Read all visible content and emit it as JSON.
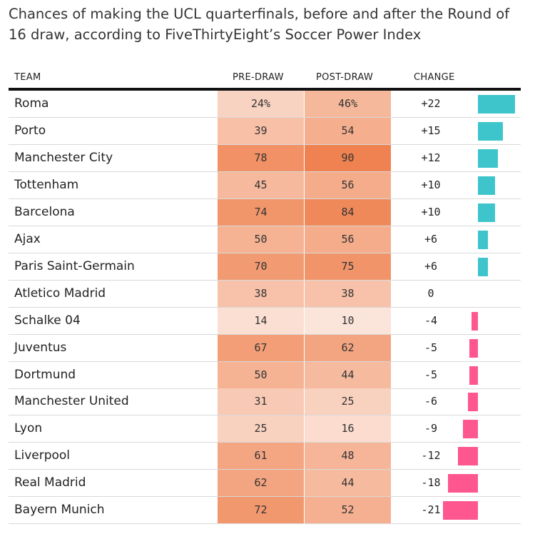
{
  "title": "Chances of making the UCL quarterfinals, before and after the Round of 16 draw, according to FiveThirtyEight’s Soccer Power Index",
  "colors": {
    "positive": "#3ec5cc",
    "negative": "#fe5790",
    "heat_low": "#fdf0ea",
    "heat_high": "#ef8250"
  },
  "chart_data": {
    "type": "table",
    "columns": [
      "TEAM",
      "PRE-DRAW",
      "POST-DRAW",
      "CHANGE"
    ],
    "rows": [
      {
        "team": "Roma",
        "pre": 24,
        "post": 46,
        "change": 22,
        "pre_label": "24%",
        "post_label": "46%",
        "change_label": "+22"
      },
      {
        "team": "Porto",
        "pre": 39,
        "post": 54,
        "change": 15,
        "pre_label": "39",
        "post_label": "54",
        "change_label": "+15"
      },
      {
        "team": "Manchester City",
        "pre": 78,
        "post": 90,
        "change": 12,
        "pre_label": "78",
        "post_label": "90",
        "change_label": "+12"
      },
      {
        "team": "Tottenham",
        "pre": 45,
        "post": 56,
        "change": 10,
        "pre_label": "45",
        "post_label": "56",
        "change_label": "+10"
      },
      {
        "team": "Barcelona",
        "pre": 74,
        "post": 84,
        "change": 10,
        "pre_label": "74",
        "post_label": "84",
        "change_label": "+10"
      },
      {
        "team": "Ajax",
        "pre": 50,
        "post": 56,
        "change": 6,
        "pre_label": "50",
        "post_label": "56",
        "change_label": "+6"
      },
      {
        "team": "Paris Saint-Germain",
        "pre": 70,
        "post": 75,
        "change": 6,
        "pre_label": "70",
        "post_label": "75",
        "change_label": "+6"
      },
      {
        "team": "Atletico Madrid",
        "pre": 38,
        "post": 38,
        "change": 0,
        "pre_label": "38",
        "post_label": "38",
        "change_label": "0"
      },
      {
        "team": "Schalke 04",
        "pre": 14,
        "post": 10,
        "change": -4,
        "pre_label": "14",
        "post_label": "10",
        "change_label": "-4"
      },
      {
        "team": "Juventus",
        "pre": 67,
        "post": 62,
        "change": -5,
        "pre_label": "67",
        "post_label": "62",
        "change_label": "-5"
      },
      {
        "team": "Dortmund",
        "pre": 50,
        "post": 44,
        "change": -5,
        "pre_label": "50",
        "post_label": "44",
        "change_label": "-5"
      },
      {
        "team": "Manchester United",
        "pre": 31,
        "post": 25,
        "change": -6,
        "pre_label": "31",
        "post_label": "25",
        "change_label": "-6"
      },
      {
        "team": "Lyon",
        "pre": 25,
        "post": 16,
        "change": -9,
        "pre_label": "25",
        "post_label": "16",
        "change_label": "-9"
      },
      {
        "team": "Liverpool",
        "pre": 61,
        "post": 48,
        "change": -12,
        "pre_label": "61",
        "post_label": "48",
        "change_label": "-12"
      },
      {
        "team": "Real Madrid",
        "pre": 62,
        "post": 44,
        "change": -18,
        "pre_label": "62",
        "post_label": "44",
        "change_label": "-18"
      },
      {
        "team": "Bayern Munich",
        "pre": 72,
        "post": 52,
        "change": -21,
        "pre_label": "72",
        "post_label": "52",
        "change_label": "-21"
      }
    ]
  }
}
